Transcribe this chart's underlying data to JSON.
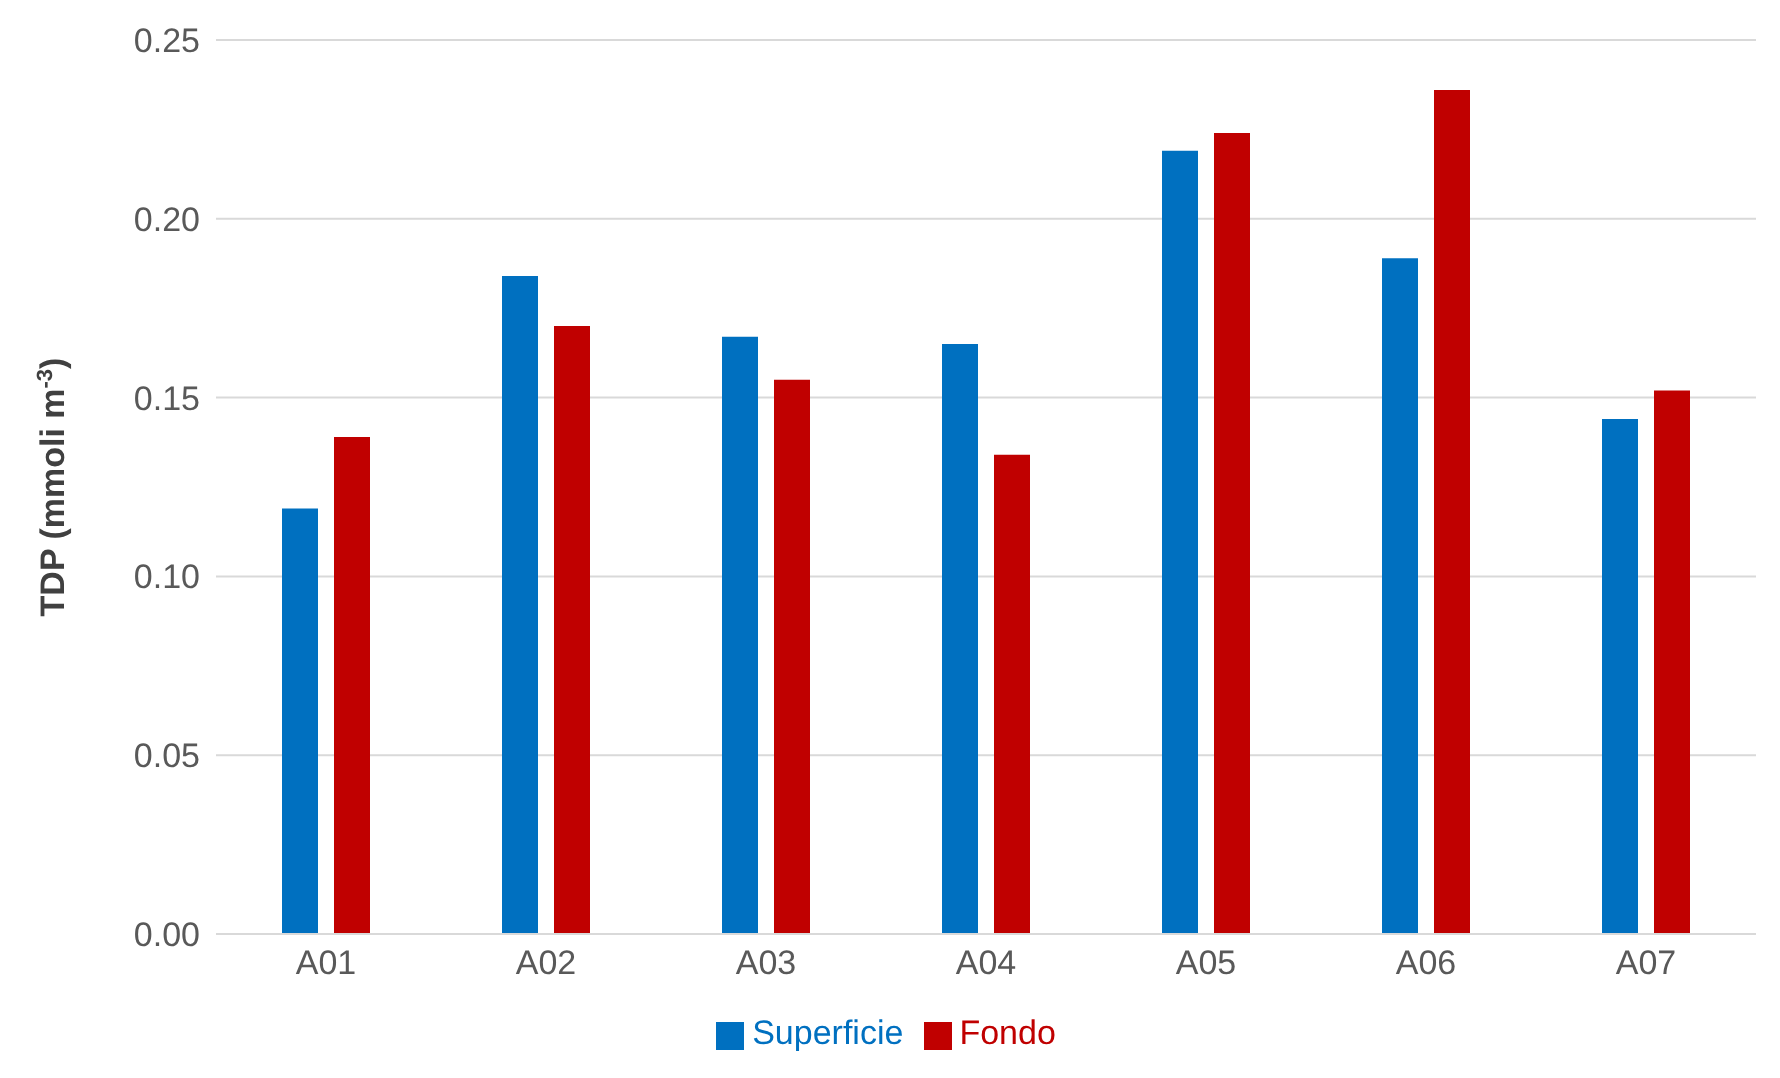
{
  "chart_data": {
    "type": "bar",
    "ylabel": "TDP (mmoli m$^{-3}$)",
    "categories": [
      "A01",
      "A02",
      "A03",
      "A04",
      "A05",
      "A06",
      "A07"
    ],
    "series": [
      {
        "name": "Superficie",
        "color": "#0070c0",
        "values": [
          0.119,
          0.184,
          0.167,
          0.165,
          0.219,
          0.189,
          0.144
        ]
      },
      {
        "name": "Fondo",
        "color": "#c00000",
        "values": [
          0.139,
          0.17,
          0.155,
          0.134,
          0.224,
          0.236,
          0.152
        ]
      }
    ],
    "ylim": [
      0,
      0.25
    ],
    "yticks": [
      {
        "value": 0,
        "label": "0.00"
      },
      {
        "value": 0.05,
        "label": "0.05"
      },
      {
        "value": 0.1,
        "label": "0.10"
      },
      {
        "value": 0.15,
        "label": "0.15"
      },
      {
        "value": 0.2,
        "label": "0.20"
      },
      {
        "value": 0.25,
        "label": "0.25"
      }
    ],
    "grid": "y",
    "legend": "bottom"
  }
}
